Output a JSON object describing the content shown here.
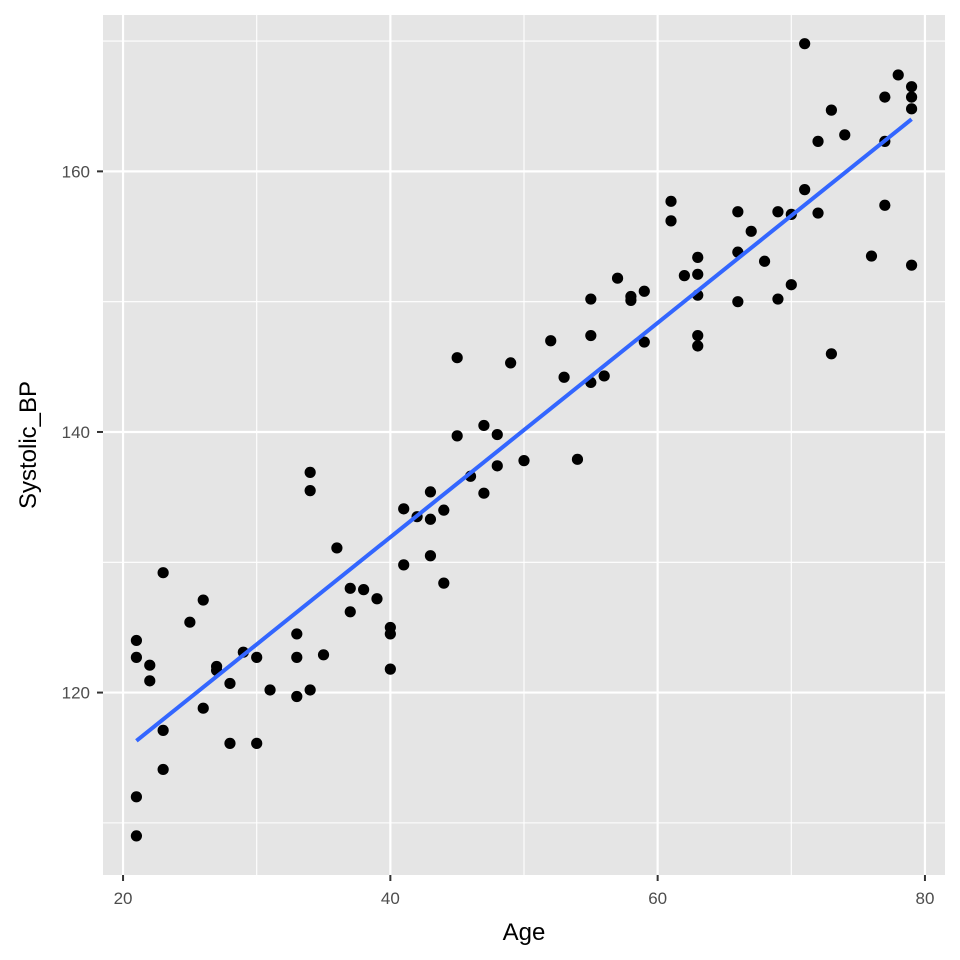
{
  "chart_data": {
    "type": "scatter",
    "xlabel": "Age",
    "ylabel": "Systolic_BP",
    "xlim": [
      18.5,
      81.5
    ],
    "ylim": [
      106,
      172
    ],
    "x_ticks": [
      20,
      40,
      60,
      80
    ],
    "y_ticks": [
      120,
      140,
      160
    ],
    "x_minor_ticks": [
      30,
      50,
      70
    ],
    "y_minor_ticks": [
      110,
      130,
      150,
      170
    ],
    "grid": true,
    "points": [
      [
        21,
        124.0
      ],
      [
        21,
        122.7
      ],
      [
        21,
        112.0
      ],
      [
        21,
        109.0
      ],
      [
        22,
        122.1
      ],
      [
        22,
        120.9
      ],
      [
        23,
        129.2
      ],
      [
        23,
        117.1
      ],
      [
        23,
        114.1
      ],
      [
        25,
        125.4
      ],
      [
        26,
        127.1
      ],
      [
        26,
        118.8
      ],
      [
        27,
        122.0
      ],
      [
        27,
        121.7
      ],
      [
        28,
        120.7
      ],
      [
        28,
        116.1
      ],
      [
        29,
        123.1
      ],
      [
        30,
        122.7
      ],
      [
        30,
        116.1
      ],
      [
        31,
        120.2
      ],
      [
        33,
        124.5
      ],
      [
        33,
        122.7
      ],
      [
        33,
        119.7
      ],
      [
        34,
        136.9
      ],
      [
        34,
        135.5
      ],
      [
        34,
        120.2
      ],
      [
        35,
        122.9
      ],
      [
        36,
        131.1
      ],
      [
        37,
        128.0
      ],
      [
        37,
        126.2
      ],
      [
        38,
        127.9
      ],
      [
        39,
        127.2
      ],
      [
        40,
        125.0
      ],
      [
        40,
        124.5
      ],
      [
        40,
        121.8
      ],
      [
        41,
        134.1
      ],
      [
        41,
        129.8
      ],
      [
        42,
        133.5
      ],
      [
        43,
        135.4
      ],
      [
        43,
        133.3
      ],
      [
        43,
        130.5
      ],
      [
        44,
        134.0
      ],
      [
        44,
        128.4
      ],
      [
        45,
        145.7
      ],
      [
        45,
        139.7
      ],
      [
        46,
        136.6
      ],
      [
        47,
        140.5
      ],
      [
        47,
        135.3
      ],
      [
        48,
        139.8
      ],
      [
        48,
        137.4
      ],
      [
        49,
        145.3
      ],
      [
        50,
        137.8
      ],
      [
        52,
        147.0
      ],
      [
        53,
        144.2
      ],
      [
        54,
        137.9
      ],
      [
        55,
        150.2
      ],
      [
        55,
        147.4
      ],
      [
        55,
        143.8
      ],
      [
        56,
        144.3
      ],
      [
        57,
        151.8
      ],
      [
        58,
        150.4
      ],
      [
        58,
        150.1
      ],
      [
        59,
        150.8
      ],
      [
        59,
        146.9
      ],
      [
        61,
        157.7
      ],
      [
        61,
        156.2
      ],
      [
        62,
        152.0
      ],
      [
        63,
        153.4
      ],
      [
        63,
        152.1
      ],
      [
        63,
        150.5
      ],
      [
        63,
        147.4
      ],
      [
        63,
        146.6
      ],
      [
        66,
        156.9
      ],
      [
        66,
        153.8
      ],
      [
        66,
        150.0
      ],
      [
        67,
        155.4
      ],
      [
        68,
        153.1
      ],
      [
        69,
        156.9
      ],
      [
        69,
        150.2
      ],
      [
        70,
        156.7
      ],
      [
        70,
        151.3
      ],
      [
        71,
        169.8
      ],
      [
        71,
        158.6
      ],
      [
        72,
        162.3
      ],
      [
        72,
        156.8
      ],
      [
        73,
        164.7
      ],
      [
        73,
        146.0
      ],
      [
        74,
        162.8
      ],
      [
        76,
        153.5
      ],
      [
        77,
        165.7
      ],
      [
        77,
        162.3
      ],
      [
        77,
        157.4
      ],
      [
        78,
        167.4
      ],
      [
        79,
        166.5
      ],
      [
        79,
        165.7
      ],
      [
        79,
        164.8
      ],
      [
        79,
        152.8
      ]
    ],
    "trend_line": {
      "method": "linear",
      "color": "#3366ff",
      "x": [
        21,
        79
      ],
      "y": [
        116.3,
        164.0
      ]
    },
    "colors": {
      "panel_background": "#e5e5e5",
      "grid": "#ffffff",
      "points": "#000000"
    }
  }
}
